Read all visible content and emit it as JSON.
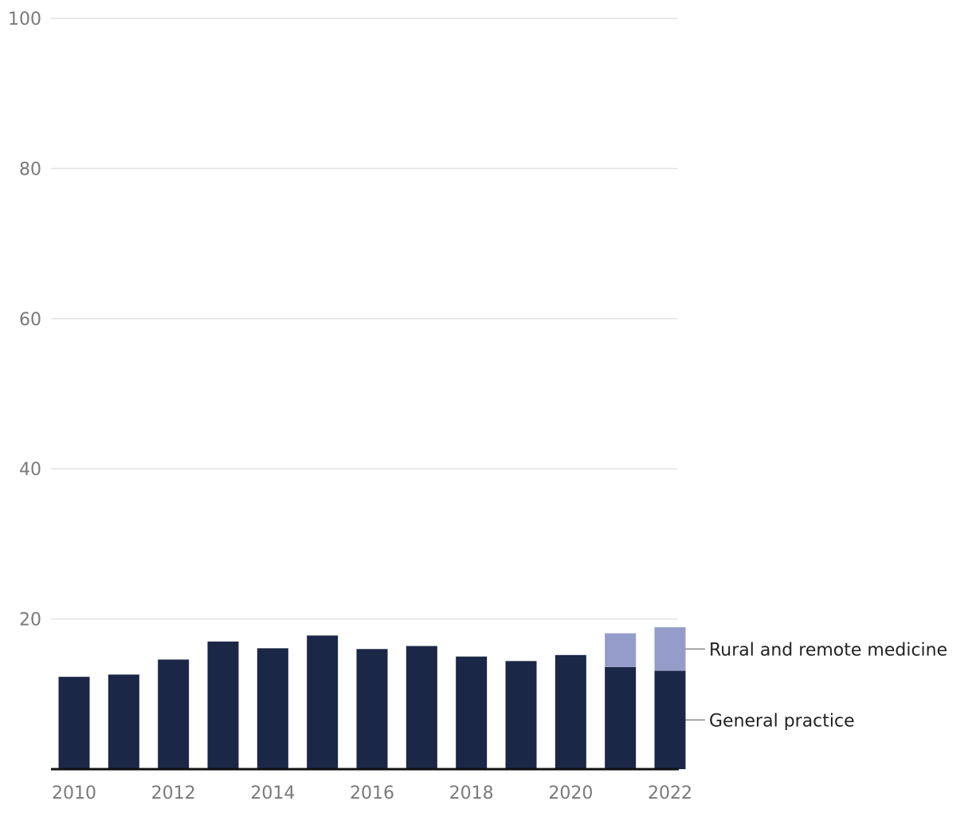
{
  "chart_data": {
    "type": "bar",
    "stacked": true,
    "categories": [
      "2010",
      "2011",
      "2012",
      "2013",
      "2014",
      "2015",
      "2016",
      "2017",
      "2018",
      "2019",
      "2020",
      "2021",
      "2022"
    ],
    "x_tick_labels": [
      "2010",
      "2012",
      "2014",
      "2016",
      "2018",
      "2020",
      "2022"
    ],
    "series": [
      {
        "name": "General practice",
        "color": "#1b2747",
        "values": [
          12.3,
          12.6,
          14.6,
          17.0,
          16.1,
          17.8,
          16.0,
          16.4,
          15.0,
          14.4,
          15.2,
          13.6,
          13.1
        ]
      },
      {
        "name": "Rural and remote medicine",
        "color": "#949dc9",
        "values": [
          0,
          0,
          0,
          0,
          0,
          0,
          0,
          0,
          0,
          0,
          0,
          4.5,
          5.8
        ]
      }
    ],
    "ylim": [
      0,
      100
    ],
    "y_ticks": [
      20,
      40,
      60,
      80,
      100
    ],
    "grid": true,
    "legend_placement": "right, inline labels",
    "title": "",
    "xlabel": "",
    "ylabel": ""
  }
}
